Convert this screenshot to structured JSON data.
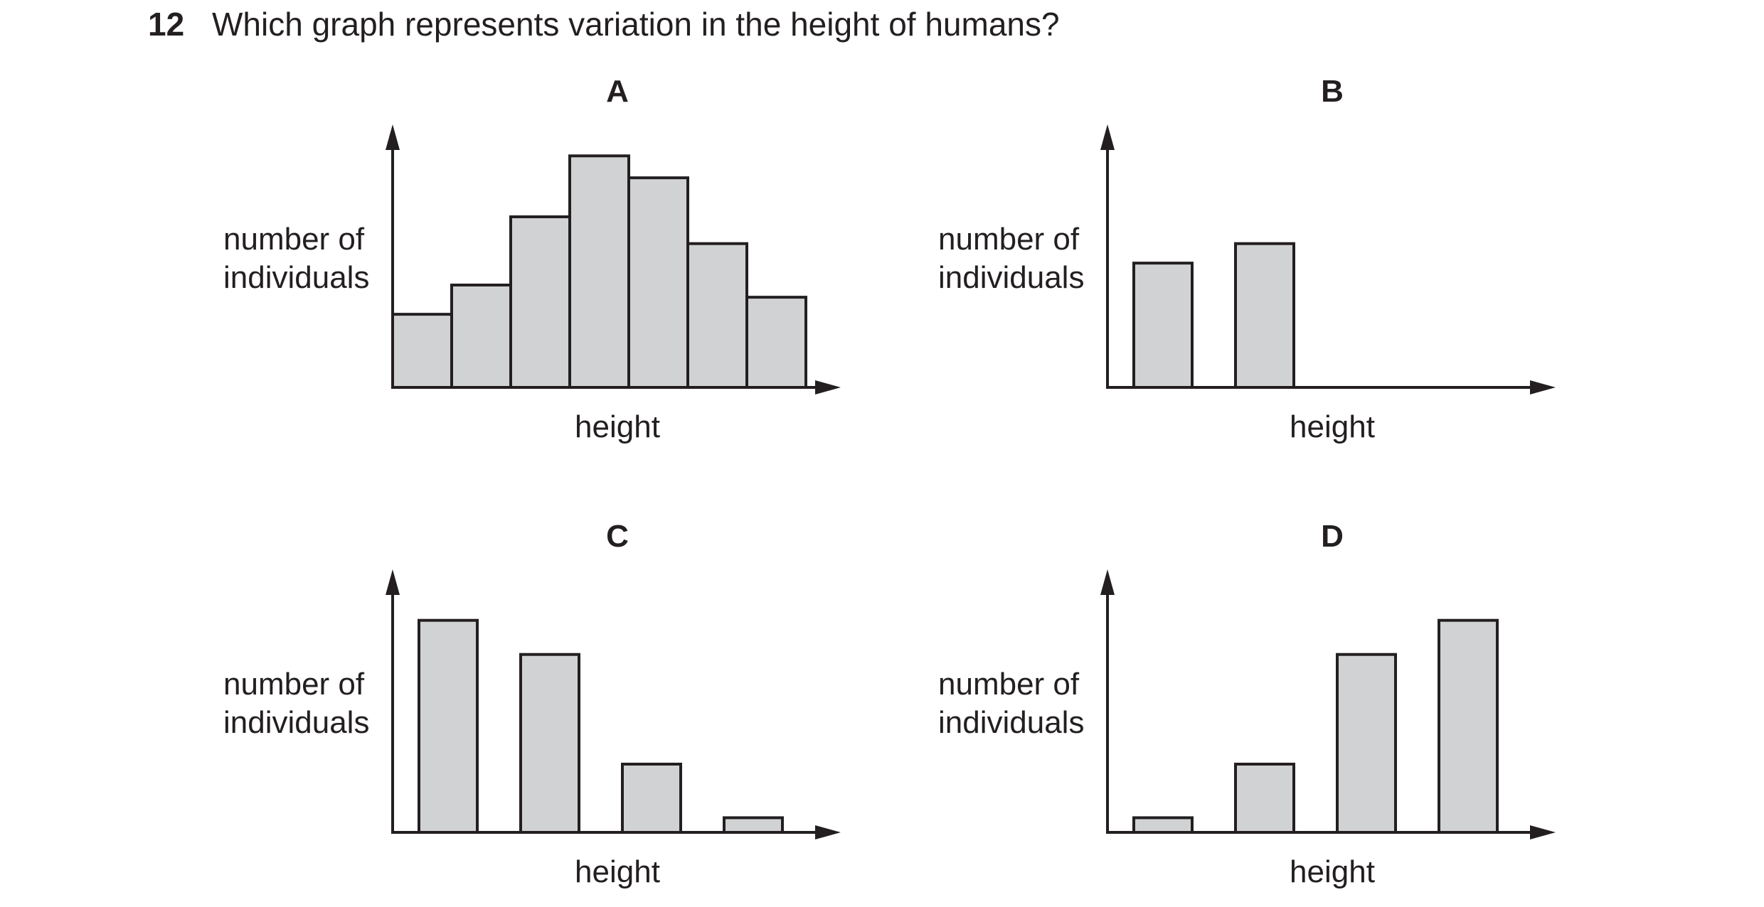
{
  "question": {
    "number": "12",
    "text": "Which graph represents variation in the height of humans?"
  },
  "colors": {
    "bar_fill": "#d1d2d4",
    "ink": "#231f20"
  },
  "chart_data": [
    {
      "type": "bar",
      "title": "A",
      "xlabel": "height",
      "ylabel": "number of individuals",
      "grid": false,
      "categories": [
        "",
        "",
        "",
        "",
        "",
        "",
        ""
      ],
      "values": [
        30,
        42,
        70,
        95,
        86,
        59,
        37
      ],
      "ylim": [
        0,
        105
      ]
    },
    {
      "type": "bar",
      "title": "B",
      "xlabel": "height",
      "ylabel": "number of individuals",
      "grid": false,
      "categories": [
        "",
        ""
      ],
      "values": [
        51,
        59
      ],
      "ylim": [
        0,
        105
      ]
    },
    {
      "type": "bar",
      "title": "C",
      "xlabel": "height",
      "ylabel": "number of individuals",
      "grid": false,
      "categories": [
        "",
        "",
        "",
        ""
      ],
      "values": [
        87,
        73,
        28,
        6
      ],
      "ylim": [
        0,
        105
      ]
    },
    {
      "type": "bar",
      "title": "D",
      "xlabel": "height",
      "ylabel": "number of individuals",
      "grid": false,
      "categories": [
        "",
        "",
        "",
        ""
      ],
      "values": [
        6,
        28,
        73,
        87
      ],
      "ylim": [
        0,
        105
      ]
    }
  ]
}
